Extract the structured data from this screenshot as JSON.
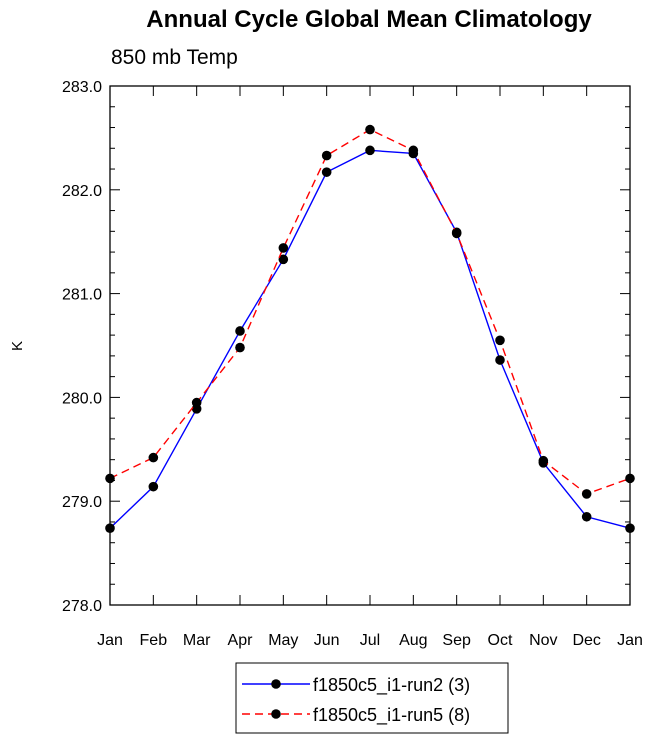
{
  "chart_data": {
    "type": "line",
    "title": "Annual Cycle Global Mean Climatology",
    "subtitle": "850 mb Temp",
    "xlabel": "",
    "ylabel": "K",
    "categories": [
      "Jan",
      "Feb",
      "Mar",
      "Apr",
      "May",
      "Jun",
      "Jul",
      "Aug",
      "Sep",
      "Oct",
      "Nov",
      "Dec",
      "Jan"
    ],
    "ylim": [
      278.0,
      283.0
    ],
    "yticks": [
      278.0,
      279.0,
      280.0,
      281.0,
      282.0,
      283.0
    ],
    "ytick_labels": [
      "278.0",
      "279.0",
      "280.0",
      "281.0",
      "282.0",
      "283.0"
    ],
    "series": [
      {
        "name": "f1850c5_i1-run2 (3)",
        "color": "#0000ff",
        "style": "solid",
        "values": [
          278.74,
          279.14,
          279.89,
          280.64,
          281.33,
          282.17,
          282.38,
          282.35,
          281.59,
          280.36,
          279.37,
          278.85,
          278.74
        ]
      },
      {
        "name": "f1850c5_i1-run5 (8)",
        "color": "#ff0000",
        "style": "dashed",
        "values": [
          279.22,
          279.42,
          279.95,
          280.48,
          281.44,
          282.33,
          282.58,
          282.38,
          281.58,
          280.55,
          279.39,
          279.07,
          279.22
        ]
      }
    ],
    "legend_position": "bottom"
  }
}
